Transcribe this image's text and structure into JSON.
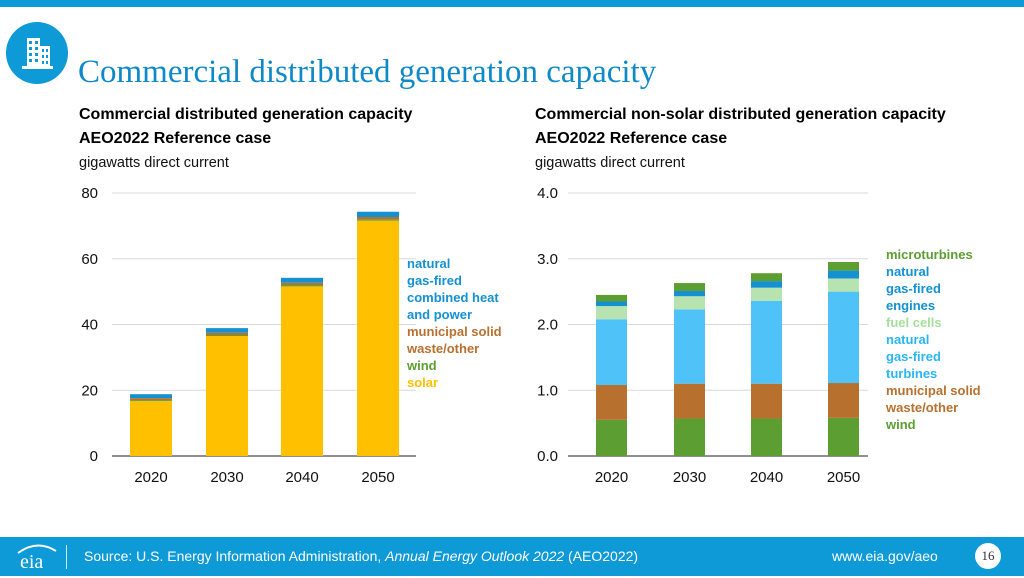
{
  "slide": {
    "title": "Commercial distributed generation capacity",
    "header_icon": "building-icon",
    "page_number": "16"
  },
  "footer": {
    "logo_text": "eia",
    "source_prefix": "Source: U.S. Energy Information Administration, ",
    "source_italic": "Annual Energy Outlook 2022",
    "source_suffix": " (AEO2022)",
    "url": "www.eia.gov/aeo"
  },
  "colors": {
    "brand_blue": "#0d9ad6",
    "solar": "#ffc000",
    "wind": "#5c9e31",
    "msw": "#b8702f",
    "chp": "#1391d1",
    "turbines": "#4fc3f7",
    "fuel_cells": "#b6e3b0",
    "engines": "#1391d1",
    "microturbines": "#5c9e31"
  },
  "chart_data": [
    {
      "type": "bar",
      "stacked": true,
      "title": "Commercial distributed generation capacity",
      "subtitle": "AEO2022 Reference case",
      "ylabel": "gigawatts direct current",
      "categories": [
        "2020",
        "2030",
        "2040",
        "2050"
      ],
      "ylim": [
        0,
        80
      ],
      "yticks": [
        "0",
        "20",
        "40",
        "60",
        "80"
      ],
      "ytick_values": [
        0,
        20,
        40,
        60,
        80
      ],
      "series": [
        {
          "name": "solar",
          "label": "solar",
          "color": "#ffc000",
          "values": [
            16.7,
            36.5,
            51.6,
            71.6
          ]
        },
        {
          "name": "wind",
          "label": "wind",
          "color": "#5c9e31",
          "values": [
            0.3,
            0.3,
            0.4,
            0.4
          ]
        },
        {
          "name": "municipal solid waste/other",
          "label": "municipal solid waste/other",
          "color": "#b8702f",
          "values": [
            0.6,
            0.7,
            0.7,
            0.7
          ]
        },
        {
          "name": "natural gas-fired combined heat and power",
          "label": "natural gas-fired combined heat and power",
          "color": "#1391d1",
          "values": [
            1.2,
            1.4,
            1.5,
            1.6
          ]
        }
      ],
      "legend_order": [
        "natural gas-fired combined heat and power",
        "municipal solid waste/other",
        "wind",
        "solar"
      ],
      "legend_placement": "right"
    },
    {
      "type": "bar",
      "stacked": true,
      "title": "Commercial non-solar distributed generation capacity",
      "subtitle": "AEO2022 Reference case",
      "ylabel": "gigawatts direct current",
      "categories": [
        "2020",
        "2030",
        "2040",
        "2050"
      ],
      "ylim": [
        0,
        4.0
      ],
      "yticks": [
        "0.0",
        "1.0",
        "2.0",
        "3.0",
        "4.0"
      ],
      "ytick_values": [
        0,
        1,
        2,
        3,
        4
      ],
      "series": [
        {
          "name": "wind",
          "label": "wind",
          "color": "#5c9e31",
          "values": [
            0.55,
            0.57,
            0.57,
            0.58
          ]
        },
        {
          "name": "municipal solid waste/other",
          "label": "municipal solid waste/other",
          "color": "#b8702f",
          "values": [
            0.53,
            0.53,
            0.53,
            0.53
          ]
        },
        {
          "name": "natural gas-fired turbines",
          "label": "natural gas-fired turbines",
          "color": "#4fc3f7",
          "values": [
            1.0,
            1.13,
            1.26,
            1.39
          ]
        },
        {
          "name": "fuel cells",
          "label": "fuel cells",
          "color": "#b6e3b0",
          "values": [
            0.2,
            0.2,
            0.2,
            0.2
          ]
        },
        {
          "name": "natural gas-fired engines",
          "label": "natural gas-fired engines",
          "color": "#1391d1",
          "values": [
            0.07,
            0.08,
            0.1,
            0.12
          ]
        },
        {
          "name": "microturbines",
          "label": "microturbines",
          "color": "#5c9e31",
          "values": [
            0.1,
            0.12,
            0.12,
            0.13
          ]
        }
      ],
      "legend_order": [
        "microturbines",
        "natural gas-fired engines",
        "fuel cells",
        "natural gas-fired turbines",
        "municipal solid waste/other",
        "wind"
      ],
      "legend_placement": "right"
    }
  ]
}
